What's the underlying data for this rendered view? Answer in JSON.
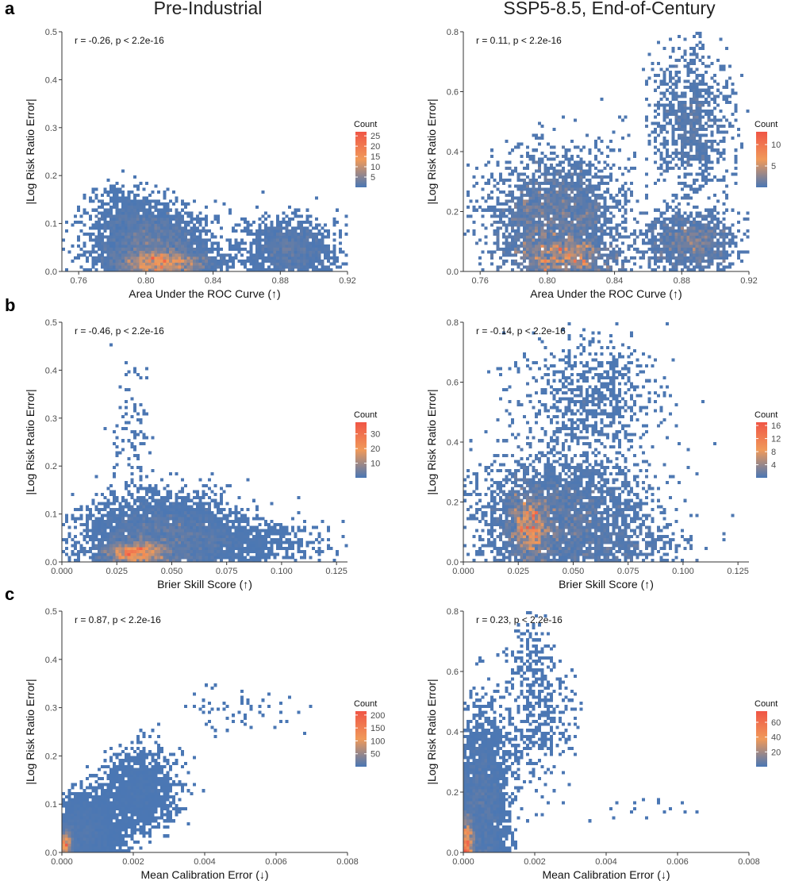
{
  "columns": [
    "Pre-Industrial",
    "SSP5-8.5, End-of-Century"
  ],
  "panel_labels": [
    "a",
    "b",
    "c"
  ],
  "colors": {
    "low": "#4a77b4",
    "mid": "#f09a5a",
    "high": "#f05545",
    "axis": "#333333"
  },
  "chart_data": [
    {
      "id": "a-pre",
      "type": "heatmap",
      "row": 0,
      "col": 0,
      "title": "Pre-Industrial",
      "xlabel": "Area Under the ROC Curve (↑)",
      "ylabel": "|Log Risk Ratio Error|",
      "xlim": [
        0.75,
        0.92
      ],
      "ylim": [
        0,
        0.5
      ],
      "xticks": [
        0.76,
        0.8,
        0.84,
        0.88,
        0.92
      ],
      "xtick_labels": [
        "0.76",
        "0.80",
        "0.84",
        "0.88",
        "0.92"
      ],
      "yticks": [
        0,
        0.1,
        0.2,
        0.3,
        0.4,
        0.5
      ],
      "ytick_labels": [
        "0.0",
        "0.1",
        "0.2",
        "0.3",
        "0.4",
        "0.5"
      ],
      "annotation": "r = -0.26, p < 2.2e-16",
      "legend": {
        "title": "Count",
        "max": 27,
        "ticks": [
          5,
          10,
          15,
          20,
          25
        ],
        "labels": [
          "5",
          "10",
          "15",
          "20",
          "25"
        ]
      },
      "clusters": [
        {
          "cx": 0.805,
          "cy": 0.05,
          "sx": 0.018,
          "sy": 0.04,
          "n": 2600,
          "dens": 1.0
        },
        {
          "cx": 0.81,
          "cy": 0.02,
          "sx": 0.015,
          "sy": 0.012,
          "n": 1200,
          "dens": 1.6
        },
        {
          "cx": 0.885,
          "cy": 0.05,
          "sx": 0.014,
          "sy": 0.03,
          "n": 1200,
          "dens": 1.0
        },
        {
          "cx": 0.79,
          "cy": 0.11,
          "sx": 0.012,
          "sy": 0.03,
          "n": 700,
          "dens": 0.7
        },
        {
          "cx": 0.81,
          "cy": 0.25,
          "sx": 0.02,
          "sy": 0.09,
          "n": 260,
          "dens": 0.2
        }
      ]
    },
    {
      "id": "a-ssp",
      "type": "heatmap",
      "row": 0,
      "col": 1,
      "title": "SSP5-8.5, End-of-Century",
      "xlabel": "Area Under the ROC Curve (↑)",
      "ylabel": "|Log Risk Ratio Error|",
      "xlim": [
        0.75,
        0.92
      ],
      "ylim": [
        0,
        0.8
      ],
      "xticks": [
        0.76,
        0.8,
        0.84,
        0.88,
        0.92
      ],
      "xtick_labels": [
        "0.76",
        "0.80",
        "0.84",
        "0.88",
        "0.92"
      ],
      "yticks": [
        0,
        0.2,
        0.4,
        0.6,
        0.8
      ],
      "ytick_labels": [
        "0.0",
        "0.2",
        "0.4",
        "0.6",
        "0.8"
      ],
      "annotation": "r = 0.11, p < 2.2e-16",
      "legend": {
        "title": "Count",
        "max": 13,
        "ticks": [
          5,
          10
        ],
        "labels": [
          "5",
          "10"
        ]
      },
      "clusters": [
        {
          "cx": 0.805,
          "cy": 0.18,
          "sx": 0.02,
          "sy": 0.1,
          "n": 2600,
          "dens": 0.9
        },
        {
          "cx": 0.81,
          "cy": 0.05,
          "sx": 0.015,
          "sy": 0.03,
          "n": 700,
          "dens": 1.5
        },
        {
          "cx": 0.885,
          "cy": 0.1,
          "sx": 0.014,
          "sy": 0.05,
          "n": 1100,
          "dens": 0.9
        },
        {
          "cx": 0.885,
          "cy": 0.5,
          "sx": 0.012,
          "sy": 0.12,
          "n": 900,
          "dens": 0.8
        },
        {
          "cx": 0.82,
          "cy": 0.4,
          "sx": 0.03,
          "sy": 0.1,
          "n": 400,
          "dens": 0.3
        }
      ]
    },
    {
      "id": "b-pre",
      "type": "heatmap",
      "row": 1,
      "col": 0,
      "title": "Pre-Industrial",
      "xlabel": "Brier Skill Score (↑)",
      "ylabel": "|Log Risk Ratio Error|",
      "xlim": [
        0,
        0.13
      ],
      "ylim": [
        0,
        0.5
      ],
      "xticks": [
        0,
        0.025,
        0.05,
        0.075,
        0.1,
        0.125
      ],
      "xtick_labels": [
        "0.000",
        "0.025",
        "0.050",
        "0.075",
        "0.100",
        "0.125"
      ],
      "yticks": [
        0,
        0.1,
        0.2,
        0.3,
        0.4,
        0.5
      ],
      "ytick_labels": [
        "0.0",
        "0.1",
        "0.2",
        "0.3",
        "0.4",
        "0.5"
      ],
      "annotation": "r = -0.46, p < 2.2e-16",
      "legend": {
        "title": "Count",
        "max": 38,
        "ticks": [
          10,
          20,
          30
        ],
        "labels": [
          "10",
          "20",
          "30"
        ]
      },
      "clusters": [
        {
          "cx": 0.045,
          "cy": 0.06,
          "sx": 0.018,
          "sy": 0.04,
          "n": 3200,
          "dens": 0.9
        },
        {
          "cx": 0.033,
          "cy": 0.02,
          "sx": 0.008,
          "sy": 0.012,
          "n": 1200,
          "dens": 1.7
        },
        {
          "cx": 0.075,
          "cy": 0.04,
          "sx": 0.02,
          "sy": 0.025,
          "n": 900,
          "dens": 0.6
        },
        {
          "cx": 0.032,
          "cy": 0.25,
          "sx": 0.006,
          "sy": 0.1,
          "n": 500,
          "dens": 0.5
        }
      ]
    },
    {
      "id": "b-ssp",
      "type": "heatmap",
      "row": 1,
      "col": 1,
      "title": "SSP5-8.5, End-of-Century",
      "xlabel": "Brier Skill Score (↑)",
      "ylabel": "|Log Risk Ratio Error|",
      "xlim": [
        0,
        0.13
      ],
      "ylim": [
        0,
        0.8
      ],
      "xticks": [
        0,
        0.025,
        0.05,
        0.075,
        0.1,
        0.125
      ],
      "xtick_labels": [
        "0.000",
        "0.025",
        "0.050",
        "0.075",
        "0.100",
        "0.125"
      ],
      "yticks": [
        0,
        0.2,
        0.4,
        0.6,
        0.8
      ],
      "ytick_labels": [
        "0.0",
        "0.2",
        "0.4",
        "0.6",
        "0.8"
      ],
      "annotation": "r = -0.14, p < 2.2e-16",
      "legend": {
        "title": "Count",
        "max": 17,
        "ticks": [
          4,
          8,
          12,
          16
        ],
        "labels": [
          "4",
          "8",
          "12",
          "16"
        ]
      },
      "clusters": [
        {
          "cx": 0.045,
          "cy": 0.15,
          "sx": 0.02,
          "sy": 0.1,
          "n": 2800,
          "dens": 0.8
        },
        {
          "cx": 0.03,
          "cy": 0.12,
          "sx": 0.005,
          "sy": 0.06,
          "n": 900,
          "dens": 1.6
        },
        {
          "cx": 0.06,
          "cy": 0.55,
          "sx": 0.015,
          "sy": 0.1,
          "n": 700,
          "dens": 0.6
        },
        {
          "cx": 0.075,
          "cy": 0.06,
          "sx": 0.02,
          "sy": 0.04,
          "n": 700,
          "dens": 0.5
        },
        {
          "cx": 0.04,
          "cy": 0.4,
          "sx": 0.02,
          "sy": 0.1,
          "n": 700,
          "dens": 0.5
        }
      ]
    },
    {
      "id": "c-pre",
      "type": "heatmap",
      "row": 2,
      "col": 0,
      "title": "Pre-Industrial",
      "xlabel": "Mean Calibration Error (↓)",
      "ylabel": "|Log Risk Ratio Error|",
      "xlim": [
        0,
        0.008
      ],
      "ylim": [
        0,
        0.5
      ],
      "xticks": [
        0,
        0.002,
        0.004,
        0.006,
        0.008
      ],
      "xtick_labels": [
        "0.000",
        "0.002",
        "0.004",
        "0.006",
        "0.008"
      ],
      "yticks": [
        0,
        0.1,
        0.2,
        0.3,
        0.4,
        0.5
      ],
      "ytick_labels": [
        "0.0",
        "0.1",
        "0.2",
        "0.3",
        "0.4",
        "0.5"
      ],
      "annotation": "r = 0.87, p < 2.2e-16",
      "legend": {
        "title": "Count",
        "max": 215,
        "ticks": [
          50,
          100,
          150,
          200
        ],
        "labels": [
          "50",
          "100",
          "150",
          "200"
        ]
      },
      "clusters": [
        {
          "cx": 0.0006,
          "cy": 0.05,
          "sx": 0.0005,
          "sy": 0.035,
          "n": 2500,
          "dens": 0.8
        },
        {
          "cx": 0.0001,
          "cy": 0.02,
          "sx": 0.0001,
          "sy": 0.015,
          "n": 700,
          "dens": 2.5
        },
        {
          "cx": 0.0022,
          "cy": 0.13,
          "sx": 0.0005,
          "sy": 0.04,
          "n": 1500,
          "dens": 0.7
        },
        {
          "cx": 0.005,
          "cy": 0.3,
          "sx": 0.0012,
          "sy": 0.035,
          "n": 400,
          "dens": 0.3
        }
      ]
    },
    {
      "id": "c-ssp",
      "type": "heatmap",
      "row": 2,
      "col": 1,
      "title": "SSP5-8.5, End-of-Century",
      "xlabel": "Mean Calibration Error (↓)",
      "ylabel": "|Log Risk Ratio Error|",
      "xlim": [
        0,
        0.008
      ],
      "ylim": [
        0,
        0.8
      ],
      "xticks": [
        0,
        0.002,
        0.004,
        0.006,
        0.008
      ],
      "xtick_labels": [
        "0.000",
        "0.002",
        "0.004",
        "0.006",
        "0.008"
      ],
      "yticks": [
        0,
        0.2,
        0.4,
        0.6,
        0.8
      ],
      "ytick_labels": [
        "0.0",
        "0.2",
        "0.4",
        "0.6",
        "0.8"
      ],
      "annotation": "r = 0.23, p < 2.2e-16",
      "legend": {
        "title": "Count",
        "max": 75,
        "ticks": [
          20,
          40,
          60
        ],
        "labels": [
          "20",
          "40",
          "60"
        ]
      },
      "clusters": [
        {
          "cx": 0.0005,
          "cy": 0.18,
          "sx": 0.0004,
          "sy": 0.14,
          "n": 2600,
          "dens": 0.8
        },
        {
          "cx": 0.0001,
          "cy": 0.05,
          "sx": 0.0001,
          "sy": 0.04,
          "n": 600,
          "dens": 2.0
        },
        {
          "cx": 0.0022,
          "cy": 0.42,
          "sx": 0.0006,
          "sy": 0.12,
          "n": 1100,
          "dens": 0.4
        },
        {
          "cx": 0.0018,
          "cy": 0.65,
          "sx": 0.0004,
          "sy": 0.08,
          "n": 400,
          "dens": 0.3
        },
        {
          "cx": 0.005,
          "cy": 0.15,
          "sx": 0.0015,
          "sy": 0.04,
          "n": 450,
          "dens": 0.25
        }
      ]
    }
  ]
}
